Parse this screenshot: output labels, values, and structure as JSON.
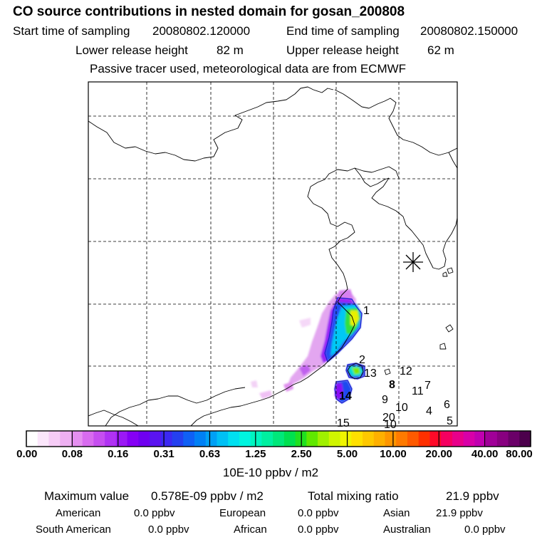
{
  "header": {
    "title": "CO  source contributions in nested domain for gosan_200808",
    "start_label": "Start time of sampling",
    "start_value": "20080802.120000",
    "end_label": "End time of sampling",
    "end_value": "20080802.150000",
    "lower_label": "Lower release height",
    "lower_value": "82 m",
    "upper_label": "Upper release height",
    "upper_value": "62 m",
    "tracer_note": "Passive tracer used, meteorological data are from ECMWF"
  },
  "chart_data": {
    "type": "heatmap",
    "title": "CO  source contributions in nested domain for gosan_200808",
    "description_units": "10E-10 ppbv / m2",
    "colorbar": {
      "tick_labels": [
        "0.00",
        "0.08",
        "0.16",
        "0.31",
        "0.63",
        "1.25",
        "2.50",
        "5.00",
        "10.00",
        "20.00",
        "40.00",
        "80.00"
      ],
      "units": "10E-10 ppbv / m2",
      "colors": [
        "#ffffff",
        "#fbe6fb",
        "#f6ccf6",
        "#eeb0f2",
        "#e58ff0",
        "#d86bef",
        "#c64ef0",
        "#b032f3",
        "#9b19f5",
        "#8500f5",
        "#6f00f0",
        "#5a14f0",
        "#3c28f2",
        "#2440f0",
        "#0f60f5",
        "#0080f5",
        "#00a0f5",
        "#00c0f5",
        "#00e0f0",
        "#00f5e0",
        "#00f5c0",
        "#00f0a0",
        "#00e87a",
        "#00e050",
        "#20e020",
        "#60e800",
        "#a0f000",
        "#d0f500",
        "#f0f500",
        "#ffe000",
        "#ffc800",
        "#ffb000",
        "#ff9600",
        "#ff7a00",
        "#ff5a00",
        "#ff3000",
        "#ff0a28",
        "#f50060",
        "#e8008a",
        "#d800a8",
        "#c000b0",
        "#a00098",
        "#880080",
        "#6a0068",
        "#4c004c"
      ]
    },
    "receptor_marker": "asterisk",
    "site_labels": [
      "1",
      "2",
      "13",
      "12",
      "8",
      "9",
      "11",
      "7",
      "14",
      "10",
      "6",
      "4",
      "20",
      "15",
      "10",
      "5"
    ]
  },
  "stats": {
    "max_label": "Maximum value",
    "max_value": "0.578E-09 ppbv / m2",
    "total_label": "Total mixing ratio",
    "total_value": "21.9 ppbv"
  },
  "regions": [
    {
      "name": "American",
      "value": "0.0 ppbv"
    },
    {
      "name": "European",
      "value": "0.0 ppbv"
    },
    {
      "name": "Asian",
      "value": "21.9 ppbv"
    },
    {
      "name": "South American",
      "value": "0.0 ppbv"
    },
    {
      "name": "African",
      "value": "0.0 ppbv"
    },
    {
      "name": "Australian",
      "value": "0.0 ppbv"
    }
  ]
}
